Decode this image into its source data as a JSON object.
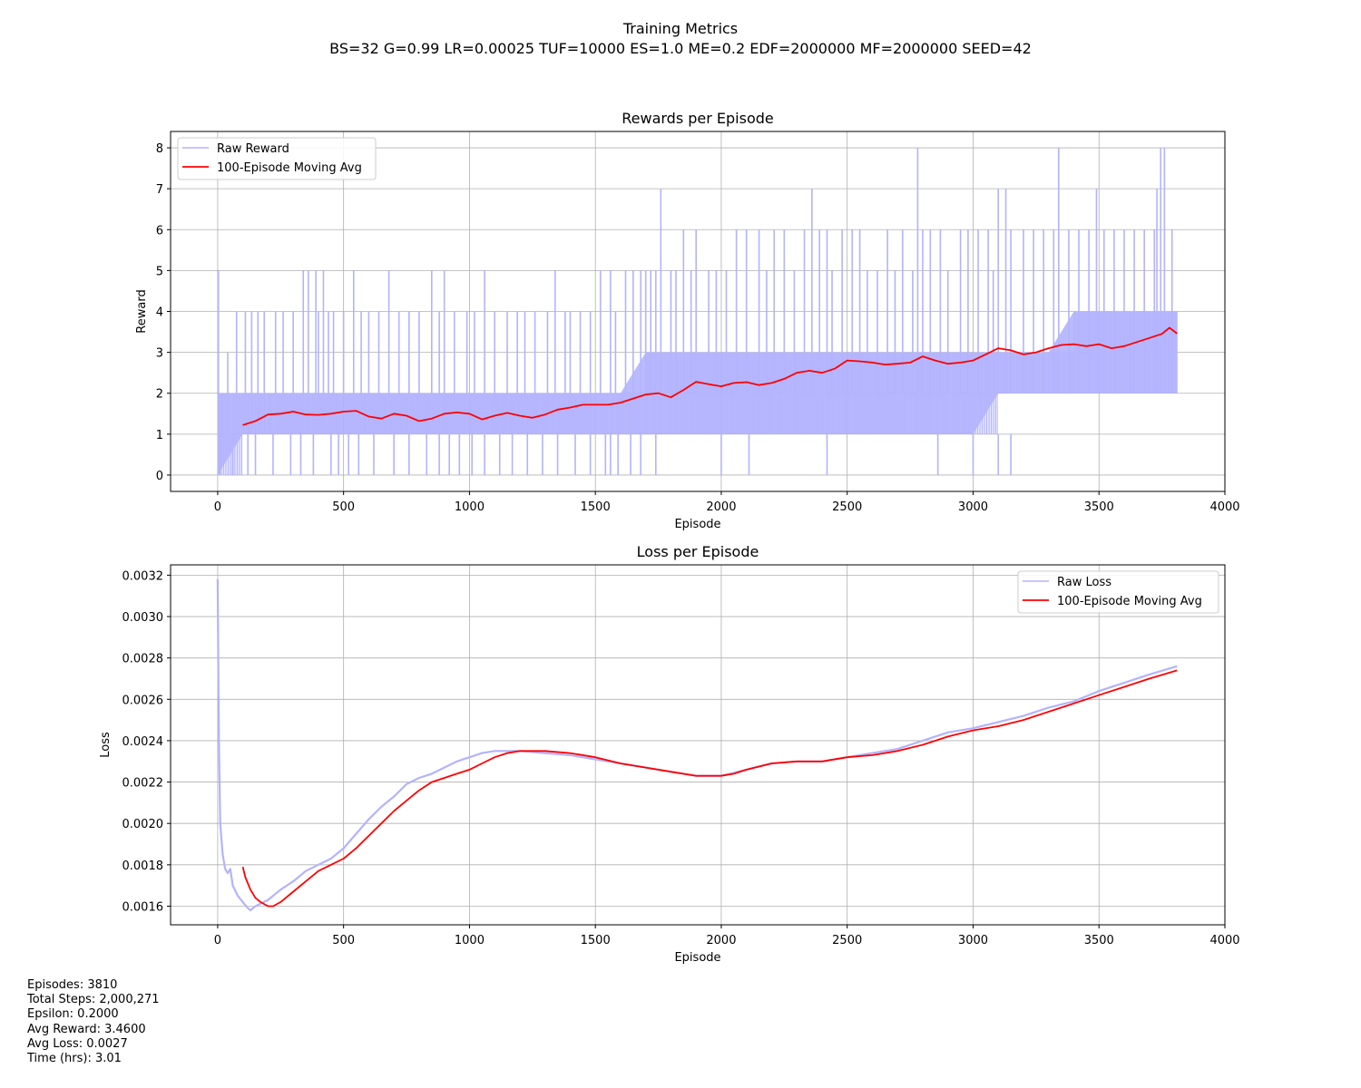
{
  "figure": {
    "title": "Training Metrics",
    "subtitle": "BS=32 G=0.99 LR=0.00025 TUF=10000 ES=1.0 ME=0.2 EDF=2000000 MF=2000000 SEED=42"
  },
  "colors": {
    "raw": "#b3b3ff",
    "avg": "#ff0000",
    "grid": "#b0b0b0",
    "axes": "#000000"
  },
  "chart_data": [
    {
      "type": "line",
      "title": "Rewards per Episode",
      "xlabel": "Episode",
      "ylabel": "Reward",
      "xlim": [
        -187,
        4000
      ],
      "ylim": [
        -0.4,
        8.4
      ],
      "xticks": [
        0,
        500,
        1000,
        1500,
        2000,
        2500,
        3000,
        3500,
        4000
      ],
      "xtick_labels": [
        "0",
        "500",
        "1000",
        "1500",
        "2000",
        "2500",
        "3000",
        "3500",
        "4000"
      ],
      "yticks": [
        0,
        1,
        2,
        3,
        4,
        5,
        6,
        7,
        8
      ],
      "ytick_labels": [
        "0",
        "1",
        "2",
        "3",
        "4",
        "5",
        "6",
        "7",
        "8"
      ],
      "grid": true,
      "legend_position": "top-left",
      "series": [
        {
          "name": "Raw Reward",
          "style": "band",
          "x": [
            0,
            100,
            200,
            300,
            400,
            500,
            600,
            700,
            800,
            900,
            1000,
            1100,
            1200,
            1300,
            1400,
            1500,
            1600,
            1700,
            1800,
            1900,
            2000,
            2100,
            2200,
            2300,
            2400,
            2500,
            2600,
            2700,
            2800,
            2900,
            3000,
            3100,
            3200,
            3300,
            3400,
            3500,
            3600,
            3700,
            3810
          ],
          "low": [
            0,
            1,
            1,
            1,
            1,
            1,
            1,
            1,
            1,
            1,
            1,
            1,
            1,
            1,
            1,
            1,
            1,
            1,
            1,
            1,
            1,
            1,
            1,
            1,
            1,
            1,
            1,
            1,
            1,
            1,
            1,
            2,
            2,
            2,
            2,
            2,
            2,
            2,
            2
          ],
          "high": [
            2,
            2,
            2,
            2,
            2,
            2,
            2,
            2,
            2,
            2,
            2,
            2,
            2,
            2,
            2,
            2,
            2,
            3,
            3,
            3,
            3,
            3,
            3,
            3,
            3,
            3,
            3,
            3,
            3,
            3,
            3,
            3,
            3,
            3,
            4,
            4,
            4,
            4,
            4
          ],
          "spikes_x": [
            3,
            40,
            75,
            110,
            135,
            160,
            185,
            230,
            260,
            300,
            340,
            360,
            390,
            400,
            420,
            440,
            460,
            500,
            540,
            570,
            600,
            640,
            680,
            720,
            760,
            800,
            850,
            880,
            900,
            940,
            990,
            1020,
            1060,
            1100,
            1150,
            1190,
            1220,
            1260,
            1310,
            1340,
            1380,
            1400,
            1440,
            1480,
            1520,
            1560,
            1580,
            1620,
            1650,
            1680,
            1700,
            1720,
            1740,
            1760,
            1800,
            1820,
            1850,
            1880,
            1900,
            1950,
            1980,
            2020,
            2060,
            2100,
            2150,
            2180,
            2210,
            2250,
            2290,
            2330,
            2360,
            2390,
            2420,
            2440,
            2480,
            2520,
            2550,
            2580,
            2620,
            2660,
            2690,
            2720,
            2760,
            2780,
            2800,
            2830,
            2870,
            2900,
            2950,
            2980,
            3020,
            3060,
            3080,
            3100,
            3130,
            3150,
            3200,
            3240,
            3280,
            3320,
            3340,
            3380,
            3420,
            3460,
            3490,
            3520,
            3560,
            3600,
            3640,
            3680,
            3720,
            3730,
            3745,
            3760,
            3790
          ],
          "spikes_y": [
            5,
            3,
            4,
            4,
            4,
            4,
            4,
            4,
            4,
            4,
            5,
            5,
            5,
            4,
            5,
            4,
            4,
            4,
            5,
            4,
            4,
            4,
            5,
            4,
            4,
            4,
            5,
            4,
            5,
            4,
            4,
            4,
            5,
            4,
            4,
            4,
            4,
            4,
            4,
            5,
            4,
            4,
            4,
            4,
            5,
            5,
            4,
            5,
            5,
            5,
            5,
            5,
            5,
            7,
            5,
            5,
            6,
            5,
            6,
            5,
            5,
            5,
            6,
            6,
            6,
            5,
            6,
            6,
            5,
            6,
            7,
            6,
            6,
            5,
            6,
            6,
            6,
            5,
            5,
            6,
            5,
            6,
            5,
            8,
            6,
            6,
            6,
            5,
            6,
            6,
            6,
            6,
            5,
            7,
            7,
            6,
            6,
            6,
            6,
            6,
            8,
            6,
            6,
            6,
            7,
            6,
            6,
            6,
            6,
            6,
            6,
            7,
            8,
            8,
            6
          ],
          "dips_x": [
            10,
            60,
            120,
            150,
            220,
            290,
            330,
            380,
            450,
            480,
            520,
            560,
            620,
            700,
            760,
            830,
            880,
            920,
            960,
            1010,
            1060,
            1120,
            1170,
            1230,
            1290,
            1350,
            1420,
            1480,
            1540,
            1560,
            1590,
            1640,
            1680,
            1740,
            1790,
            1860,
            1960,
            2000,
            2040,
            2110,
            2180,
            2240,
            2300,
            2380,
            2420,
            2460,
            2500,
            2560,
            2620,
            2700,
            2740,
            2820,
            2860,
            2920,
            2970,
            3000,
            3050,
            3080,
            3100,
            3150,
            3180,
            3250,
            3300,
            3360,
            3420,
            3500,
            3560,
            3620,
            3700,
            3760,
            3800
          ],
          "dips_y": [
            0,
            0,
            0,
            0,
            0,
            0,
            0,
            0,
            0,
            0,
            0,
            0,
            0,
            0,
            0,
            0,
            0,
            0,
            0,
            0,
            0,
            0,
            0,
            0,
            0,
            0,
            0,
            0,
            0,
            0,
            0,
            0,
            0,
            0,
            1,
            1,
            1,
            0,
            1,
            0,
            1,
            1,
            1,
            1,
            0,
            1,
            1,
            1,
            1,
            1,
            1,
            1,
            0,
            1,
            1,
            0,
            1,
            1,
            0,
            0,
            1,
            1,
            1,
            1,
            1,
            1,
            1,
            1,
            1,
            1,
            1
          ]
        },
        {
          "name": "100-Episode Moving Avg",
          "style": "line",
          "x": [
            100,
            150,
            200,
            250,
            300,
            350,
            400,
            450,
            500,
            550,
            600,
            650,
            700,
            750,
            800,
            850,
            900,
            950,
            1000,
            1050,
            1100,
            1150,
            1200,
            1250,
            1300,
            1350,
            1400,
            1450,
            1500,
            1550,
            1600,
            1650,
            1700,
            1750,
            1800,
            1850,
            1900,
            1950,
            2000,
            2050,
            2100,
            2150,
            2200,
            2250,
            2300,
            2350,
            2400,
            2450,
            2500,
            2550,
            2600,
            2650,
            2700,
            2750,
            2800,
            2850,
            2900,
            2950,
            3000,
            3050,
            3100,
            3150,
            3200,
            3250,
            3300,
            3350,
            3400,
            3450,
            3500,
            3550,
            3600,
            3650,
            3700,
            3750,
            3780,
            3810
          ],
          "y": [
            1.22,
            1.32,
            1.48,
            1.5,
            1.55,
            1.48,
            1.47,
            1.5,
            1.55,
            1.57,
            1.43,
            1.38,
            1.5,
            1.45,
            1.32,
            1.38,
            1.5,
            1.53,
            1.5,
            1.36,
            1.45,
            1.52,
            1.45,
            1.4,
            1.48,
            1.6,
            1.65,
            1.72,
            1.72,
            1.72,
            1.77,
            1.87,
            1.97,
            2.0,
            1.9,
            2.08,
            2.28,
            2.22,
            2.17,
            2.25,
            2.27,
            2.2,
            2.25,
            2.35,
            2.5,
            2.55,
            2.5,
            2.6,
            2.8,
            2.78,
            2.75,
            2.7,
            2.72,
            2.75,
            2.9,
            2.8,
            2.72,
            2.75,
            2.8,
            2.95,
            3.1,
            3.05,
            2.95,
            3.0,
            3.1,
            3.18,
            3.2,
            3.15,
            3.2,
            3.1,
            3.15,
            3.25,
            3.35,
            3.45,
            3.6,
            3.46
          ]
        }
      ]
    },
    {
      "type": "line",
      "title": "Loss per Episode",
      "xlabel": "Episode",
      "ylabel": "Loss",
      "xlim": [
        -187,
        4000
      ],
      "ylim": [
        0.00151,
        0.00325
      ],
      "xticks": [
        0,
        500,
        1000,
        1500,
        2000,
        2500,
        3000,
        3500,
        4000
      ],
      "xtick_labels": [
        "0",
        "500",
        "1000",
        "1500",
        "2000",
        "2500",
        "3000",
        "3500",
        "4000"
      ],
      "yticks": [
        0.0016,
        0.0018,
        0.002,
        0.0022,
        0.0024,
        0.0026,
        0.0028,
        0.003,
        0.0032
      ],
      "ytick_labels": [
        "0.0016",
        "0.0018",
        "0.0020",
        "0.0022",
        "0.0024",
        "0.0026",
        "0.0028",
        "0.0030",
        "0.0032"
      ],
      "grid": true,
      "legend_position": "top-right",
      "series": [
        {
          "name": "Raw Loss",
          "style": "line",
          "x": [
            0,
            2,
            5,
            10,
            20,
            30,
            40,
            50,
            60,
            80,
            100,
            120,
            130,
            150,
            200,
            250,
            300,
            350,
            400,
            450,
            500,
            550,
            600,
            650,
            700,
            750,
            800,
            850,
            900,
            950,
            1000,
            1050,
            1100,
            1150,
            1200,
            1300,
            1400,
            1500,
            1600,
            1700,
            1800,
            1900,
            2000,
            2100,
            2200,
            2300,
            2400,
            2500,
            2600,
            2700,
            2800,
            2900,
            3000,
            3100,
            3200,
            3300,
            3400,
            3500,
            3600,
            3700,
            3810
          ],
          "y": [
            0.00318,
            0.0028,
            0.0024,
            0.002,
            0.00185,
            0.00178,
            0.00176,
            0.00178,
            0.0017,
            0.00165,
            0.00162,
            0.00159,
            0.00158,
            0.0016,
            0.00163,
            0.00168,
            0.00172,
            0.00177,
            0.0018,
            0.00183,
            0.00188,
            0.00195,
            0.00202,
            0.00208,
            0.00213,
            0.00219,
            0.00222,
            0.00224,
            0.00227,
            0.0023,
            0.00232,
            0.00234,
            0.00235,
            0.00235,
            0.00235,
            0.00234,
            0.00233,
            0.00231,
            0.00229,
            0.00227,
            0.00225,
            0.00223,
            0.00223,
            0.00226,
            0.00229,
            0.0023,
            0.0023,
            0.00232,
            0.00234,
            0.00236,
            0.0024,
            0.00244,
            0.00246,
            0.00249,
            0.00252,
            0.00256,
            0.00259,
            0.00264,
            0.00268,
            0.00272,
            0.00276
          ]
        },
        {
          "name": "100-Episode Moving Avg",
          "style": "line",
          "x": [
            100,
            110,
            130,
            150,
            170,
            200,
            220,
            250,
            300,
            350,
            400,
            450,
            500,
            550,
            600,
            650,
            700,
            750,
            800,
            850,
            900,
            950,
            1000,
            1050,
            1100,
            1150,
            1200,
            1300,
            1400,
            1500,
            1600,
            1700,
            1800,
            1900,
            2000,
            2050,
            2100,
            2200,
            2300,
            2400,
            2500,
            2600,
            2700,
            2800,
            2900,
            3000,
            3100,
            3200,
            3300,
            3400,
            3500,
            3600,
            3700,
            3810
          ],
          "y": [
            0.00179,
            0.00174,
            0.00168,
            0.00164,
            0.00162,
            0.0016,
            0.0016,
            0.00162,
            0.00167,
            0.00172,
            0.00177,
            0.0018,
            0.00183,
            0.00188,
            0.00194,
            0.002,
            0.00206,
            0.00211,
            0.00216,
            0.0022,
            0.00222,
            0.00224,
            0.00226,
            0.00229,
            0.00232,
            0.00234,
            0.00235,
            0.00235,
            0.00234,
            0.00232,
            0.00229,
            0.00227,
            0.00225,
            0.00223,
            0.00223,
            0.00224,
            0.00226,
            0.00229,
            0.0023,
            0.0023,
            0.00232,
            0.00233,
            0.00235,
            0.00238,
            0.00242,
            0.00245,
            0.00247,
            0.0025,
            0.00254,
            0.00258,
            0.00262,
            0.00266,
            0.0027,
            0.00274
          ]
        }
      ]
    }
  ],
  "stats": [
    "Episodes: 3810",
    "Total Steps: 2,000,271",
    "Epsilon: 0.2000",
    "Avg Reward: 3.4600",
    "Avg Loss: 0.0027",
    "Time (hrs): 3.01"
  ]
}
